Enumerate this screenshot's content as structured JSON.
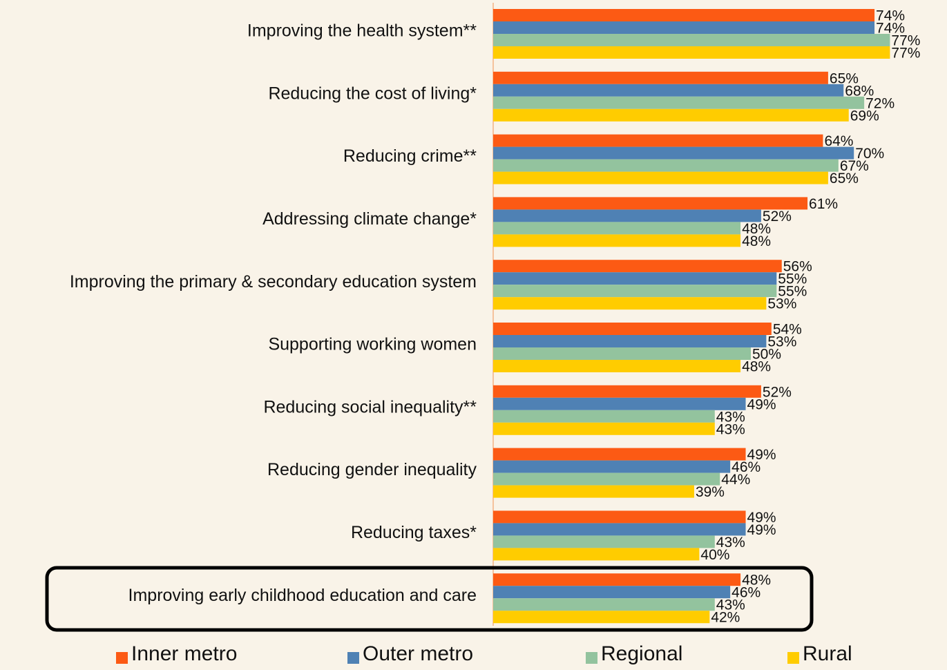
{
  "chart_data": {
    "type": "hbar",
    "categories": [
      "Improving the health system**",
      "Reducing the cost of living*",
      "Reducing crime**",
      "Addressing climate change*",
      "Improving the primary & secondary education system",
      "Supporting working women",
      "Reducing social inequality**",
      "Reducing gender inequality",
      "Reducing taxes*",
      "Improving early childhood education and care"
    ],
    "series": [
      {
        "name": "Inner metro",
        "color": "#fc5a14",
        "values": [
          74,
          65,
          64,
          61,
          56,
          54,
          52,
          49,
          49,
          48
        ],
        "value_labels": [
          "74%",
          "65%",
          "64%",
          "61%",
          "56%",
          "54%",
          "52%",
          "49%",
          "49%",
          "48%"
        ]
      },
      {
        "name": "Outer metro",
        "color": "#4f81b4",
        "values": [
          74,
          68,
          70,
          52,
          55,
          53,
          49,
          46,
          49,
          46
        ],
        "value_labels": [
          "74%",
          "68%",
          "70%",
          "52%",
          "55%",
          "53%",
          "49%",
          "46%",
          "49%",
          "46%"
        ]
      },
      {
        "name": "Regional",
        "color": "#93c39e",
        "values": [
          77,
          72,
          67,
          48,
          55,
          50,
          43,
          44,
          43,
          43
        ],
        "value_labels": [
          "77%",
          "72%",
          "67%",
          "48%",
          "55%",
          "50%",
          "43%",
          "44%",
          "43%",
          "43%"
        ]
      },
      {
        "name": "Rural",
        "color": "#ffcc00",
        "values": [
          77,
          69,
          65,
          48,
          53,
          48,
          43,
          39,
          40,
          42
        ],
        "value_labels": [
          "77%",
          "69%",
          "65%",
          "48%",
          "53%",
          "48%",
          "43%",
          "39%",
          "40%",
          "42%"
        ]
      }
    ]
  }
}
